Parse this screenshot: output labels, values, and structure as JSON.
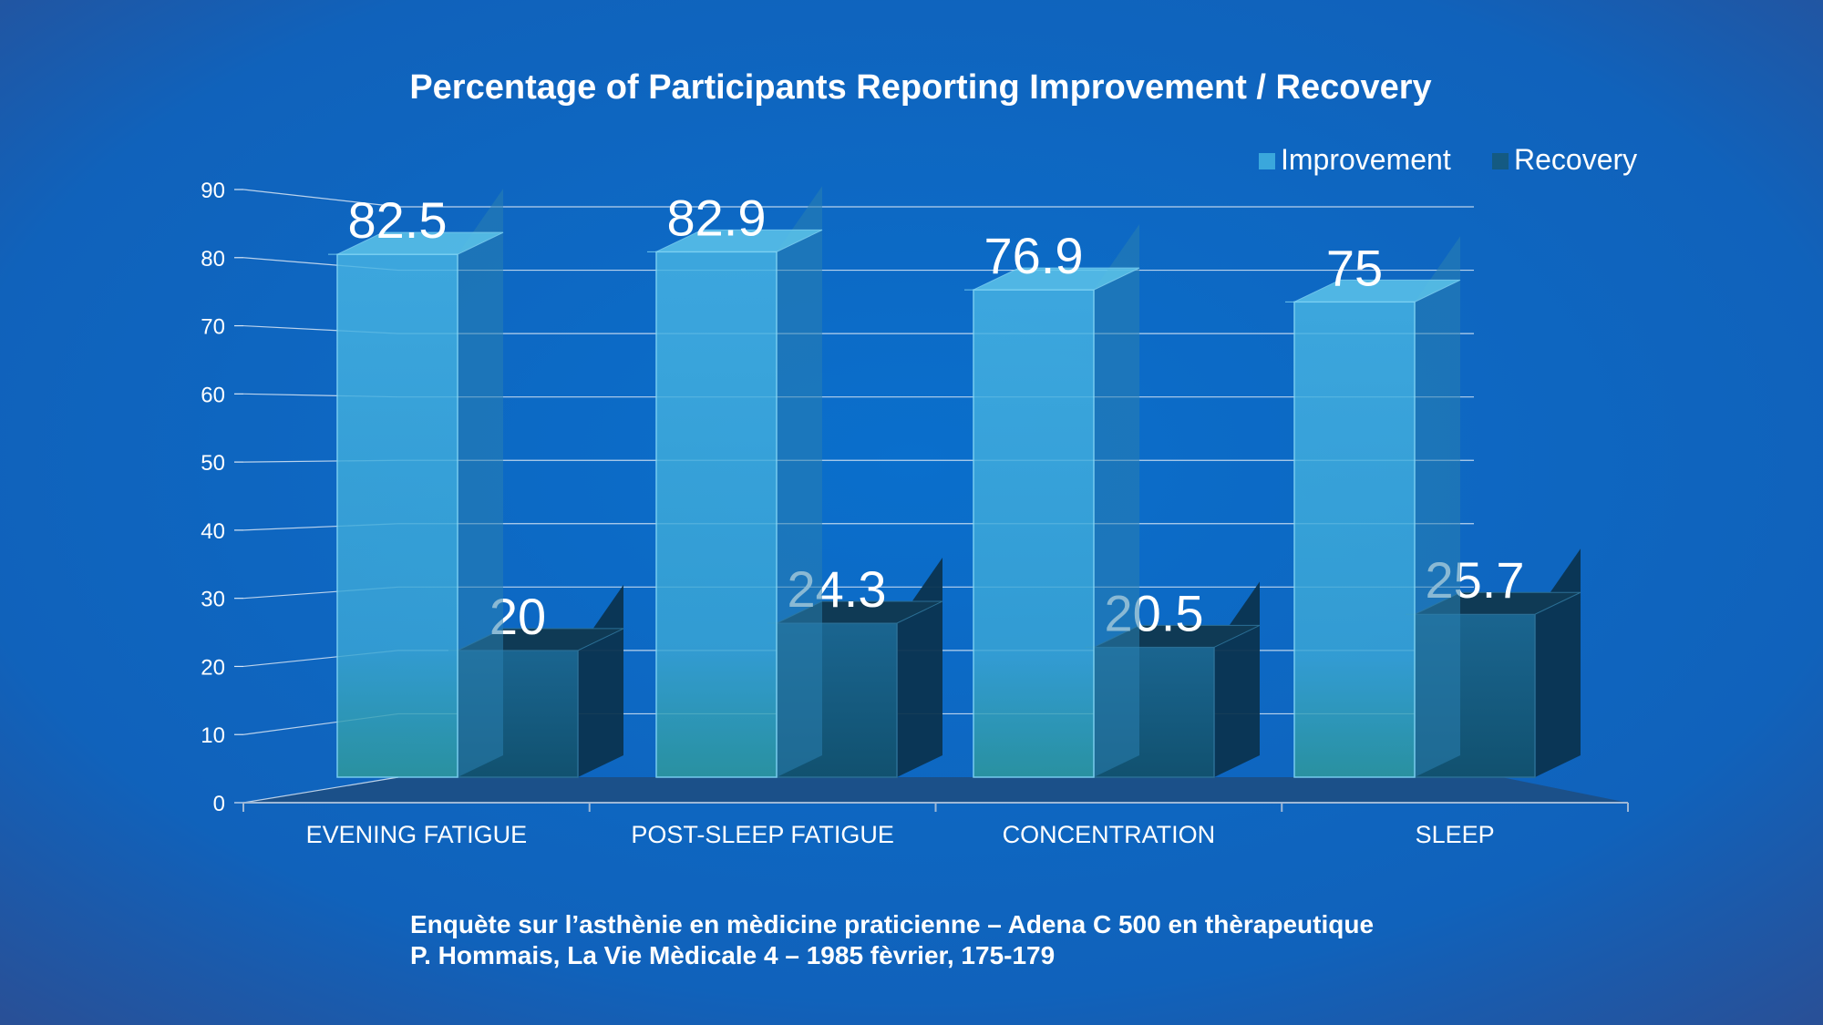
{
  "chart_data": {
    "type": "bar",
    "title": "Percentage of Participants Reporting Improvement / Recovery",
    "categories": [
      "EVENING FATIGUE",
      "POST-SLEEP FATIGUE",
      "CONCENTRATION",
      "SLEEP"
    ],
    "series": [
      {
        "name": "Improvement",
        "values": [
          82.5,
          82.9,
          76.9,
          75
        ],
        "labels": [
          "82.5",
          "82.9",
          "76.9",
          "75"
        ],
        "color": "#3aa7dc"
      },
      {
        "name": "Recovery",
        "values": [
          20,
          24.3,
          20.5,
          25.7
        ],
        "labels": [
          "20",
          "24.3",
          "20.5",
          "25.7"
        ],
        "color": "#145a82"
      }
    ],
    "yticks": [
      "0",
      "10",
      "20",
      "30",
      "40",
      "50",
      "60",
      "70",
      "80",
      "90"
    ],
    "ylim": [
      0,
      90
    ],
    "xlabel": "",
    "ylabel": "",
    "grid": true,
    "legend_position": "top-right",
    "style": "3d-columns"
  },
  "source": {
    "line1": "Enquète sur l’asthènie en mèdicine praticienne – Adena C 500 en thèrapeutique",
    "line2": "P. Hommais, La Vie Mèdicale 4 – 1985 fèvrier, 175-179"
  },
  "colors": {
    "background": "#0f63bd",
    "floor": "#1c4f86",
    "gridline": "#d8e6f5",
    "improvement": "#3aa7dc",
    "recovery": "#145a82"
  }
}
